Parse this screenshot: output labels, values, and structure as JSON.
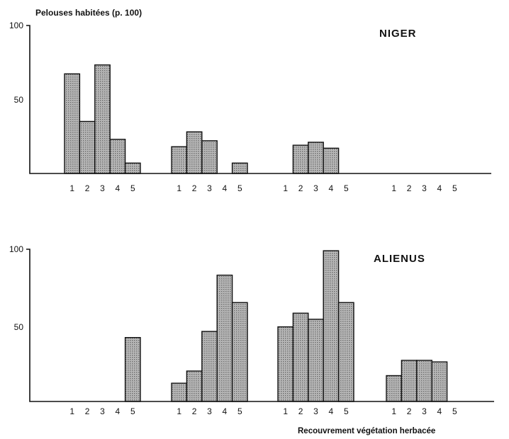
{
  "chart_data": [
    {
      "type": "bar",
      "title": "NIGER",
      "ylabel": "Pelouses habitées (p. 100)",
      "xlabel": "",
      "ylim": [
        0,
        100
      ],
      "yticks": [
        "100",
        "50"
      ],
      "groups": [
        {
          "categories": [
            "1",
            "2",
            "3",
            "4",
            "5"
          ],
          "values": [
            67,
            35,
            73,
            23,
            7
          ]
        },
        {
          "categories": [
            "1",
            "2",
            "3",
            "4",
            "5"
          ],
          "values": [
            18,
            28,
            22,
            0,
            7
          ]
        },
        {
          "categories": [
            "1",
            "2",
            "3",
            "4",
            "5"
          ],
          "values": [
            0,
            19,
            21,
            17,
            0
          ]
        },
        {
          "categories": [
            "1",
            "2",
            "3",
            "4",
            "5"
          ],
          "values": [
            0,
            0,
            0,
            0,
            0
          ]
        }
      ]
    },
    {
      "type": "bar",
      "title": "ALIENUS",
      "ylabel": "",
      "xlabel": "Recouvrement végétation herbacée",
      "ylim": [
        0,
        100
      ],
      "yticks": [
        "100",
        "50"
      ],
      "groups": [
        {
          "categories": [
            "1",
            "2",
            "3",
            "4",
            "5"
          ],
          "values": [
            0,
            0,
            0,
            0,
            42
          ]
        },
        {
          "categories": [
            "1",
            "2",
            "3",
            "4",
            "5"
          ],
          "values": [
            12,
            20,
            46,
            83,
            65
          ]
        },
        {
          "categories": [
            "1",
            "2",
            "3",
            "4",
            "5"
          ],
          "values": [
            49,
            58,
            54,
            99,
            65
          ]
        },
        {
          "categories": [
            "1",
            "2",
            "3",
            "4",
            "5"
          ],
          "values": [
            17,
            27,
            27,
            26,
            0
          ]
        }
      ]
    }
  ],
  "colors": {
    "bar_fill": "#b9b9b9",
    "ink": "#111111"
  }
}
